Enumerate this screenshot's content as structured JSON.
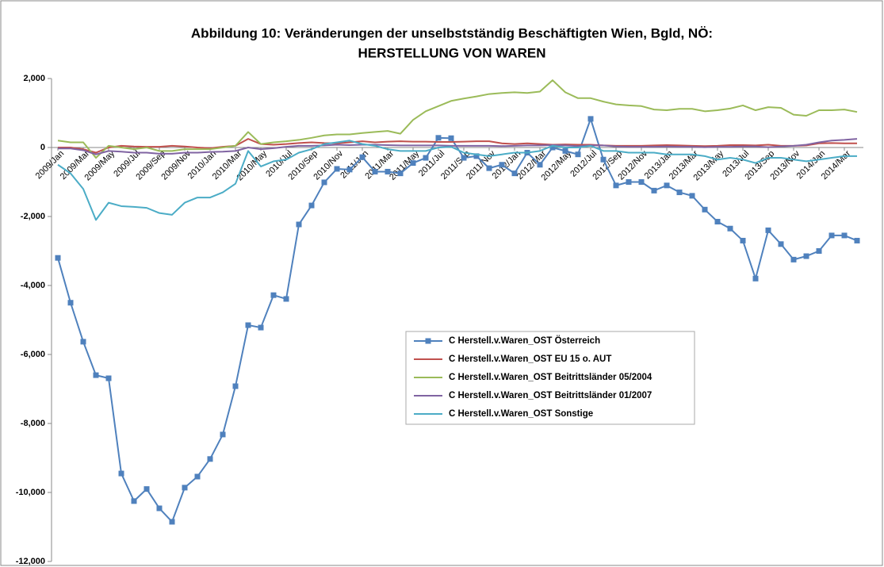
{
  "chart_data": {
    "type": "line",
    "title": "Abbildung 10: Veränderungen der unselbstständig Beschäftigten Wien, Bgld, NÖ:",
    "subtitle": "HERSTELLUNG VON WAREN",
    "categories": [
      "2009/Jan",
      null,
      "2009/Mar",
      null,
      "2009/May",
      null,
      "2009/Jul",
      null,
      "2009/Sep",
      null,
      "2009/Nov",
      null,
      "2010/Jan",
      null,
      "2010/Mar",
      null,
      "2010/May",
      null,
      "2010/Jul",
      null,
      "2010/Sep",
      null,
      "2010/Nov",
      null,
      "2011/Jan",
      null,
      "2011/Mar",
      null,
      "2011/May",
      null,
      "2011/Jul",
      null,
      "2011/Sep",
      null,
      "2011/Nov",
      null,
      "2012/Jan",
      null,
      "2012/Mar",
      null,
      "2012/May",
      null,
      "2012/Jul",
      null,
      "2012/Sep",
      null,
      "2012/Nov",
      null,
      "2013/Jan",
      null,
      "2013/Mar",
      null,
      "2013/May",
      null,
      "2013/Jul",
      null,
      "2013/Sep",
      null,
      "2013/Nov",
      null,
      "2014/Jan",
      null,
      "2014/Mar",
      null
    ],
    "series": [
      {
        "name": "C Herstell.v.Waren_OST Österreich",
        "color": "#4f81bd",
        "marker": "square",
        "values": [
          -3200,
          -4500,
          -5630,
          -6600,
          -6690,
          -9450,
          -10250,
          -9900,
          -10460,
          -10850,
          -9860,
          -9540,
          -9030,
          -8320,
          -6920,
          -5150,
          -5220,
          -4280,
          -4390,
          -2230,
          -1680,
          -1010,
          -620,
          -640,
          -280,
          -700,
          -700,
          -750,
          -450,
          -300,
          280,
          270,
          -300,
          -250,
          -600,
          -500,
          -750,
          -150,
          -500,
          0,
          -100,
          -200,
          830,
          -350,
          -1100,
          -1000,
          -1000,
          -1250,
          -1100,
          -1300,
          -1400,
          -1800,
          -2150,
          -2350,
          -2700,
          -3800,
          -2400,
          -2800,
          -3250,
          -3150,
          -3000,
          -2550,
          -2550,
          -2700
        ]
      },
      {
        "name": "C Herstell.v.Waren_OST EU 15 o. AUT",
        "color": "#c0504d",
        "values": [
          0,
          0,
          -50,
          -150,
          0,
          50,
          30,
          20,
          20,
          50,
          30,
          0,
          -20,
          20,
          50,
          250,
          100,
          80,
          100,
          130,
          150,
          130,
          120,
          150,
          180,
          150,
          170,
          180,
          170,
          170,
          160,
          160,
          170,
          180,
          180,
          120,
          100,
          120,
          100,
          80,
          90,
          80,
          80,
          60,
          50,
          50,
          50,
          60,
          70,
          60,
          50,
          40,
          50,
          70,
          70,
          60,
          80,
          50,
          50,
          60,
          120,
          130,
          120,
          120
        ]
      },
      {
        "name": "C Herstell.v.Waren_OST Beitrittsländer 05/2004",
        "color": "#9bbb59",
        "values": [
          200,
          150,
          150,
          -300,
          50,
          0,
          -50,
          0,
          -100,
          -100,
          -50,
          -50,
          -50,
          0,
          50,
          450,
          100,
          150,
          180,
          220,
          280,
          350,
          380,
          380,
          420,
          450,
          480,
          400,
          800,
          1050,
          1200,
          1350,
          1420,
          1480,
          1550,
          1580,
          1600,
          1580,
          1620,
          1950,
          1600,
          1430,
          1430,
          1330,
          1250,
          1220,
          1200,
          1100,
          1080,
          1120,
          1120,
          1050,
          1080,
          1130,
          1220,
          1080,
          1170,
          1150,
          950,
          920,
          1080,
          1080,
          1100,
          1030
        ]
      },
      {
        "name": "C Herstell.v.Waren_OST Beitrittsländer 01/2007",
        "color": "#8064a2",
        "values": [
          -30,
          -30,
          -80,
          -200,
          -100,
          -120,
          -150,
          -150,
          -180,
          -180,
          -150,
          -150,
          -130,
          -120,
          -100,
          0,
          -50,
          -20,
          20,
          50,
          50,
          60,
          80,
          70,
          80,
          80,
          70,
          60,
          60,
          60,
          60,
          50,
          50,
          50,
          50,
          40,
          50,
          60,
          60,
          70,
          60,
          40,
          60,
          60,
          30,
          20,
          20,
          20,
          30,
          20,
          20,
          10,
          20,
          20,
          30,
          30,
          10,
          30,
          50,
          80,
          150,
          200,
          220,
          250
        ]
      },
      {
        "name": "C Herstell.v.Waren_OST Sonstige",
        "color": "#4bacc6",
        "values": [
          -500,
          -750,
          -1200,
          -2100,
          -1600,
          -1700,
          -1720,
          -1750,
          -1900,
          -1950,
          -1600,
          -1450,
          -1450,
          -1300,
          -1050,
          -100,
          -550,
          -400,
          -350,
          -150,
          -50,
          100,
          150,
          200,
          100,
          50,
          -50,
          -100,
          -100,
          -100,
          0,
          20,
          -150,
          -200,
          -250,
          -200,
          -150,
          -150,
          -100,
          50,
          0,
          0,
          50,
          -100,
          -100,
          -150,
          -150,
          -150,
          -200,
          -200,
          -200,
          -250,
          -350,
          -300,
          -350,
          -450,
          -300,
          -300,
          -350,
          -400,
          -350,
          -300,
          -250,
          -250
        ]
      }
    ],
    "ylim": [
      -12000,
      2000
    ],
    "yticks": [
      {
        "value": -12000,
        "label": "-12,000"
      },
      {
        "value": -10000,
        "label": "-10,000"
      },
      {
        "value": -8000,
        "label": "-8,000"
      },
      {
        "value": -6000,
        "label": "-6,000"
      },
      {
        "value": -4000,
        "label": "-4,000"
      },
      {
        "value": -2000,
        "label": "-2,000"
      },
      0,
      {
        "value": 2000,
        "label": "2,000"
      }
    ],
    "grid": false
  }
}
